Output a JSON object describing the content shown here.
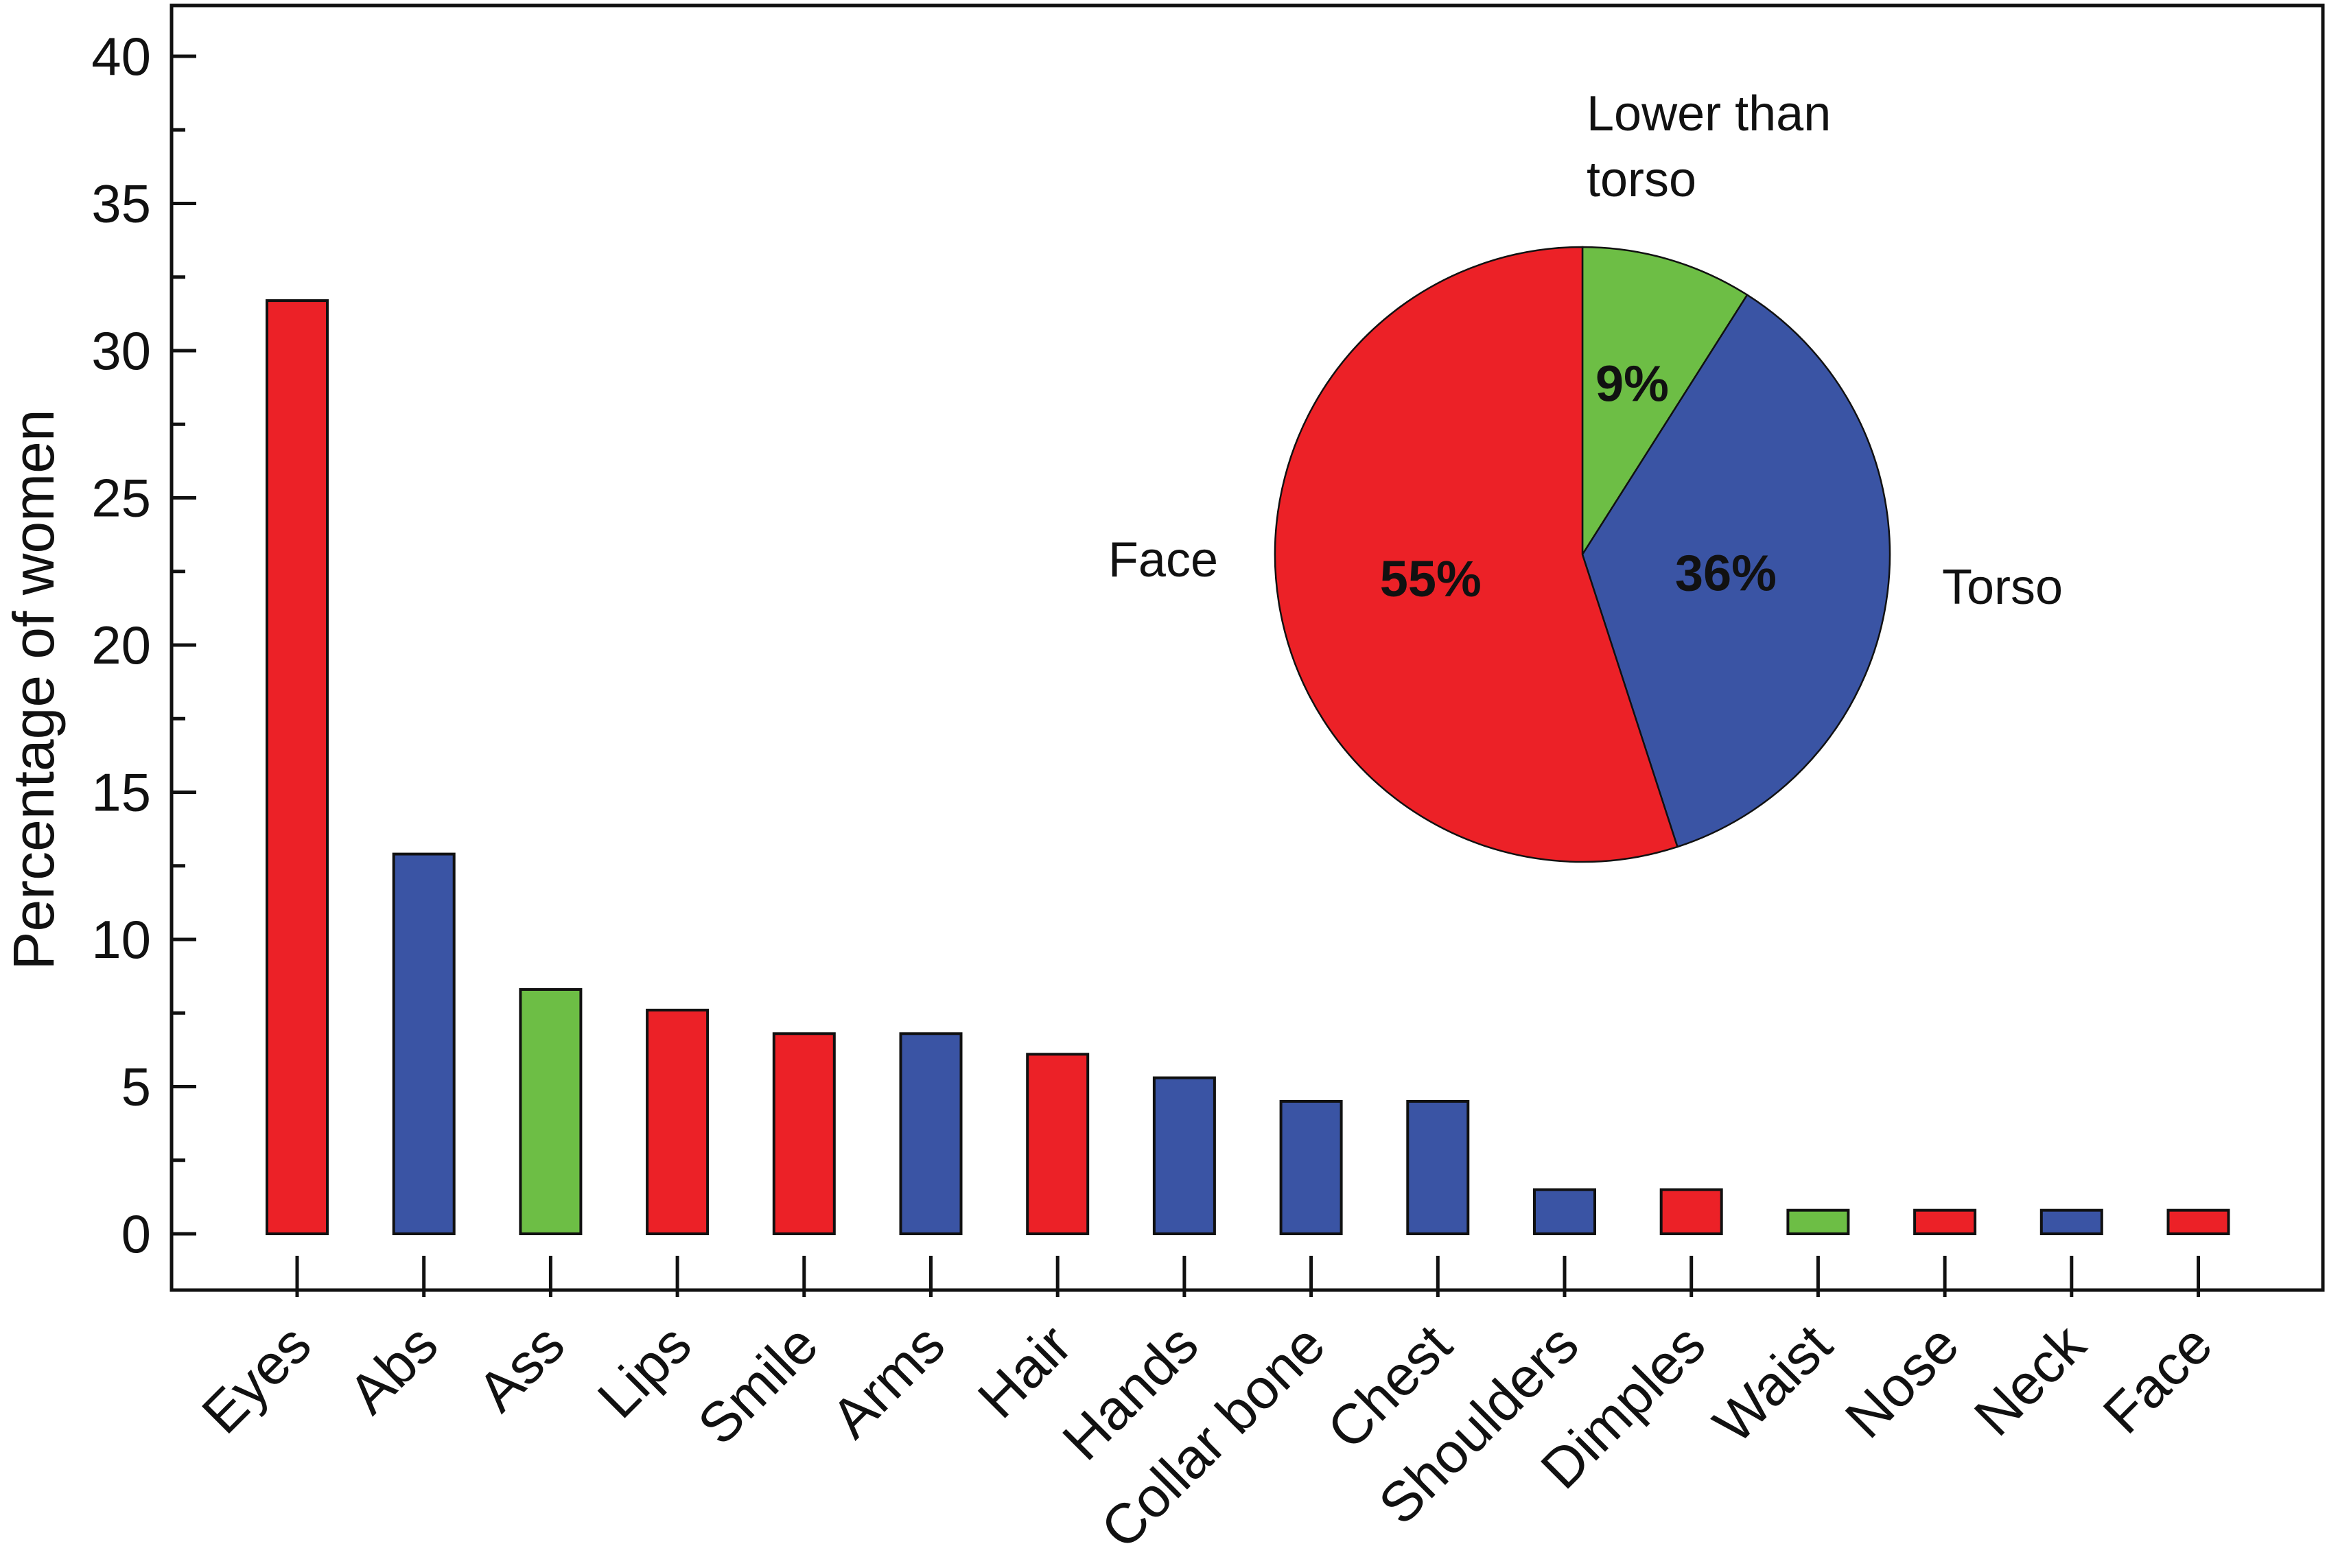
{
  "chart_data": [
    {
      "type": "bar",
      "ylabel": "Percentage of women",
      "xlabel": "",
      "ylim": [
        0,
        42
      ],
      "yticks": [
        0,
        5,
        10,
        15,
        20,
        25,
        30,
        35,
        40
      ],
      "categories": [
        "Eyes",
        "Abs",
        "Ass",
        "Lips",
        "Smile",
        "Arms",
        "Hair",
        "Hands",
        "Collar bone",
        "Chest",
        "Shoulders",
        "Dimples",
        "Waist",
        "Nose",
        "Neck",
        "Face"
      ],
      "values": [
        31.7,
        12.9,
        8.3,
        7.6,
        6.8,
        6.8,
        6.1,
        5.3,
        4.5,
        4.5,
        1.5,
        1.5,
        0.8,
        0.8,
        0.8,
        0.8
      ],
      "group": [
        "Face",
        "Torso",
        "Lower than torso",
        "Face",
        "Face",
        "Torso",
        "Face",
        "Torso",
        "Torso",
        "Torso",
        "Torso",
        "Face",
        "Lower than torso",
        "Face",
        "Torso",
        "Face"
      ],
      "grid": false
    },
    {
      "type": "pie",
      "labels": [
        "Lower than torso",
        "Torso",
        "Face"
      ],
      "values": [
        9,
        36,
        55
      ],
      "value_labels": [
        "9%",
        "36%",
        "55%"
      ],
      "start": "top",
      "direction": "clockwise"
    }
  ],
  "group_colors": {
    "Face": "#ec2127",
    "Torso": "#3a54a4",
    "Lower than torso": "#6dbe45"
  },
  "pie_labels": {
    "lower_line1": "Lower than",
    "lower_line2": "torso",
    "torso": "Torso",
    "face": "Face"
  }
}
